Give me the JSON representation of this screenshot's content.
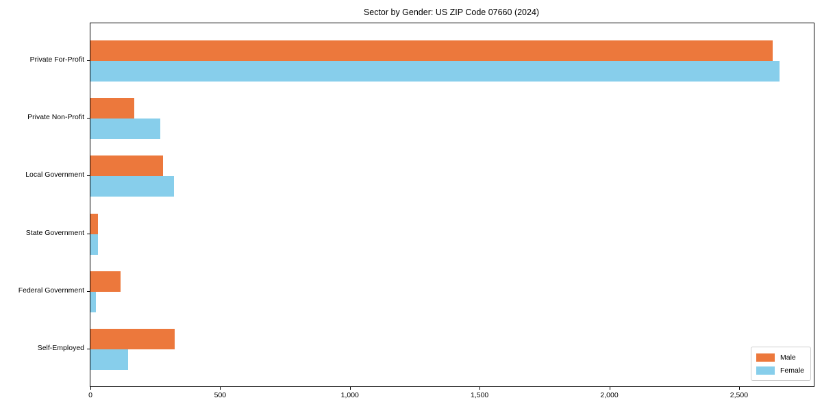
{
  "chart_data": {
    "type": "bar",
    "orientation": "horizontal",
    "title": "Sector by Gender: US ZIP Code 07660 (2024)",
    "categories": [
      "Private For-Profit",
      "Private Non-Profit",
      "Local Government",
      "State Government",
      "Federal Government",
      "Self-Employed"
    ],
    "series": [
      {
        "name": "Male",
        "color": "#ec783c",
        "values": [
          2630,
          170,
          280,
          30,
          116,
          325
        ]
      },
      {
        "name": "Female",
        "color": "#87ceeb",
        "values": [
          2655,
          270,
          322,
          28,
          20,
          145
        ]
      }
    ],
    "xlabel": "",
    "ylabel": "",
    "xlim": [
      0,
      2788
    ],
    "xticks": {
      "values": [
        0,
        500,
        1000,
        1500,
        2000,
        2500
      ],
      "labels": [
        "0",
        "500",
        "1,000",
        "1,500",
        "2,000",
        "2,500"
      ]
    },
    "grid": false,
    "legend_position": "lower right"
  },
  "colors": {
    "background": "#ffffff",
    "axis": "#000000",
    "legend_border": "#cccccc",
    "male": "#ec783c",
    "female": "#87ceeb"
  }
}
